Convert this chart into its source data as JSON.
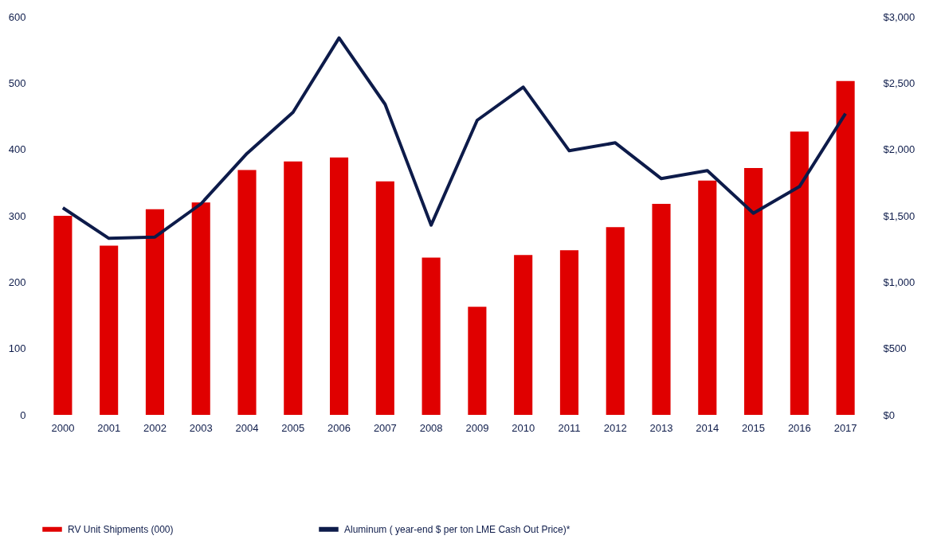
{
  "chart_data": {
    "type": "bar",
    "categories": [
      "2000",
      "2001",
      "2002",
      "2003",
      "2004",
      "2005",
      "2006",
      "2007",
      "2008",
      "2009",
      "2010",
      "2011",
      "2012",
      "2013",
      "2014",
      "2015",
      "2016",
      "2017"
    ],
    "series": [
      {
        "name": "RV Unit Shipments (000)",
        "color": "#e00000",
        "values": [
          300,
          255,
          310,
          320,
          369,
          382,
          388,
          352,
          237,
          163,
          241,
          248,
          283,
          318,
          353,
          372,
          427,
          503
        ]
      },
      {
        "name": "Aluminum  ( year-end $ per ton LME Cash Out Price)*",
        "type": "line",
        "axis": "y2",
        "color": "#0d1b4a",
        "values": [
          1560,
          1330,
          1340,
          1590,
          1970,
          2280,
          2840,
          2340,
          1430,
          2220,
          2470,
          1990,
          2050,
          1780,
          1840,
          1520,
          1720,
          2270
        ]
      }
    ],
    "ylim": [
      0,
      600
    ],
    "yticks": [
      0,
      100,
      200,
      300,
      400,
      500,
      600
    ],
    "y2lim": [
      0,
      3000
    ],
    "y2ticks": [
      {
        "value": 0,
        "label": "$0"
      },
      {
        "value": 500,
        "label": "$500"
      },
      {
        "value": 1000,
        "label": "$1,000"
      },
      {
        "value": 1500,
        "label": "$1,500"
      },
      {
        "value": 2000,
        "label": "$2,000"
      },
      {
        "value": 2500,
        "label": "$2,500"
      },
      {
        "value": 3000,
        "label": "$3,000"
      }
    ],
    "legend": "bottom",
    "line_style": "solid"
  }
}
